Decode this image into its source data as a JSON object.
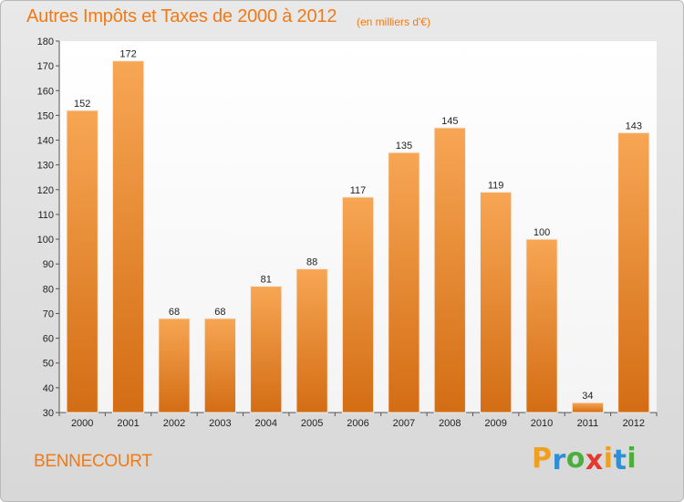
{
  "title": "Autres Impôts et Taxes de 2000 à 2012",
  "subtitle": "(en milliers d'€)",
  "commune": "BENNECOURT",
  "brand": {
    "letters": [
      "P",
      "r",
      "o",
      "x",
      "i",
      "t",
      "i"
    ],
    "colors": [
      "#f0a020",
      "#2f8fd6",
      "#4cae3c",
      "#e23a2e",
      "#f0a020",
      "#2f8fd6",
      "#4cae3c"
    ]
  },
  "chart_data": {
    "type": "bar",
    "title": "Autres Impôts et Taxes de 2000 à 2012",
    "subtitle": "(en milliers d'€)",
    "categories": [
      "2000",
      "2001",
      "2002",
      "2003",
      "2004",
      "2005",
      "2006",
      "2007",
      "2008",
      "2009",
      "2010",
      "2011",
      "2012"
    ],
    "values": [
      152,
      172,
      68,
      68,
      81,
      88,
      117,
      135,
      145,
      119,
      100,
      34,
      143
    ],
    "ylim": [
      30,
      180
    ],
    "yticks": [
      30,
      40,
      50,
      60,
      70,
      80,
      90,
      100,
      110,
      120,
      130,
      140,
      150,
      160,
      170,
      180
    ],
    "grid": false,
    "bar_color": "#f0a050",
    "bar_color_dark": "#d8731a"
  }
}
